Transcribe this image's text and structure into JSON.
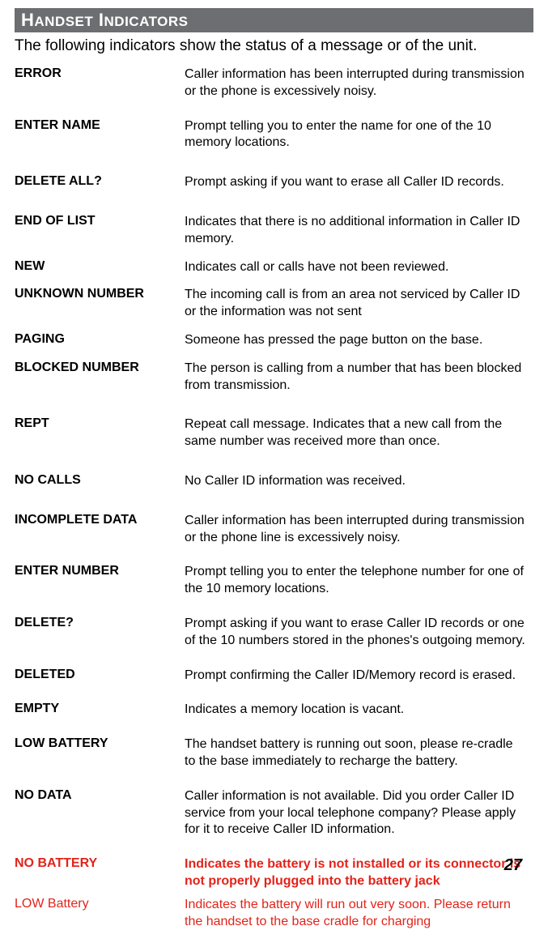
{
  "header": {
    "title_big1": "H",
    "title_small1": "ANDSET",
    "title_big2": " I",
    "title_small2": "NDICATORS"
  },
  "intro": "The following indicators show the status of a message or of the unit.",
  "rows": [
    {
      "term": "ERROR",
      "desc": "Caller information has been interrupted during transmission or the phone is excessively noisy.",
      "gap": "md"
    },
    {
      "term": "ENTER NAME",
      "desc": "Prompt telling you to enter the name for one of the 10 memory locations.",
      "gap": "lg"
    },
    {
      "term": "DELETE ALL?",
      "desc": "Prompt asking if you want to erase all Caller ID records.",
      "gap": "lg"
    },
    {
      "term": "END OF LIST",
      "desc": "Indicates that there is no additional information in Caller ID memory.",
      "gap": "sm"
    },
    {
      "term": "NEW",
      "desc": "Indicates call or calls have not been reviewed.",
      "gap": "sm"
    },
    {
      "term": "UNKNOWN NUMBER",
      "desc": "The incoming call is from an area not serviced by Caller ID or the information was not sent",
      "gap": "sm"
    },
    {
      "term": "PAGING",
      "desc": "Someone has pressed the page button on the base.",
      "gap": "sm"
    },
    {
      "term": "BLOCKED NUMBER",
      "desc": "The person is calling from a number that has been blocked from transmission.",
      "gap": "lg"
    },
    {
      "term": "REPT",
      "desc": "Repeat call message. Indicates that a new call from the same number was received more than once.",
      "gap": "lg"
    },
    {
      "term": "NO CALLS",
      "desc": "No Caller ID information was received.",
      "gap": "lg"
    },
    {
      "term": "INCOMPLETE DATA",
      "desc": "Caller information has been interrupted during transmission or the phone line is excessively noisy.",
      "gap": "md"
    },
    {
      "term": "ENTER NUMBER",
      "desc": "Prompt telling you to enter the telephone number for one of the 10 memory locations.",
      "gap": "md"
    },
    {
      "term": "DELETE?",
      "desc": "Prompt asking if you want to erase Caller ID records or one of the 10 numbers stored in the phones's outgoing memory.",
      "gap": "md"
    },
    {
      "term": "DELETED",
      "desc": "Prompt confirming the Caller ID/Memory record is erased.",
      "gap": "md"
    },
    {
      "term": "EMPTY",
      "desc": "Indicates a memory location is vacant.",
      "gap": "md"
    },
    {
      "term": "LOW BATTERY",
      "desc": "The handset battery is running out soon, please re-cradle to the base immediately to recharge the battery.",
      "gap": "md"
    },
    {
      "term": "NO DATA",
      "desc": "Caller information is not available. Did you order Caller ID service from your local telephone company? Please apply for it to receive Caller ID information.",
      "gap": "md"
    }
  ],
  "red_rows": [
    {
      "term": "NO BATTERY",
      "desc": "Indicates the battery is not installed or its connector is not properly plugged into the battery jack",
      "class": "red"
    },
    {
      "term": "LOW Battery",
      "desc": "Indicates the battery will run out very soon.  Please return the handset to the base cradle for charging",
      "class": "red2"
    }
  ],
  "page_number": "27"
}
